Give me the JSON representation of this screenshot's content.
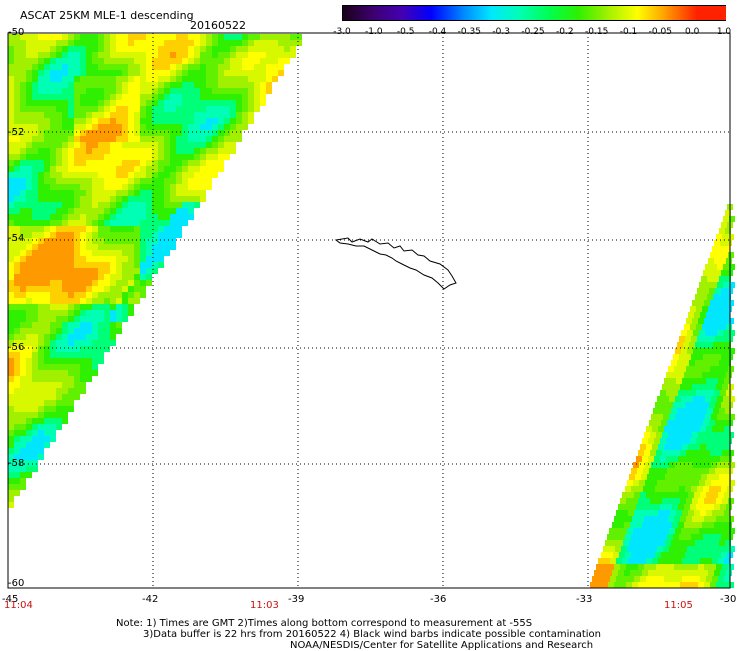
{
  "header": {
    "title": "ASCAT 25KM MLE-1 descending",
    "date": "20160522"
  },
  "colorbar": {
    "labels": [
      "-3.0",
      "-1.0",
      "-0.5",
      "-0.4",
      "-0.35",
      "-0.3",
      "-0.25",
      "-0.2",
      "-0.15",
      "-0.1",
      "-0.05",
      "0.0",
      "1.0"
    ],
    "colors": [
      "#1a001a",
      "#3c006e",
      "#4400b4",
      "#0000ff",
      "#0080ff",
      "#00e6ff",
      "#00ffb4",
      "#00ff50",
      "#2ef000",
      "#a0f000",
      "#ffff00",
      "#ff9900",
      "#ff2200"
    ]
  },
  "map": {
    "lat_labels": [
      "-50",
      "-52",
      "-54",
      "-56",
      "-58",
      "-60"
    ],
    "lon_labels": [
      "-45",
      "-42",
      "-39",
      "-36",
      "-33",
      "-30"
    ],
    "time_labels": [
      "11:04",
      "11:03",
      "11:05"
    ]
  },
  "footer": {
    "line1": "Note: 1) Times are GMT 2)Times along bottom correspond to measurement at -55S",
    "line2": "3)Data buffer is 22 hrs from 20160522 4) Black wind barbs indicate possible contamination",
    "line3": "NOAA/NESDIS/Center for Satellite Applications and Research"
  }
}
